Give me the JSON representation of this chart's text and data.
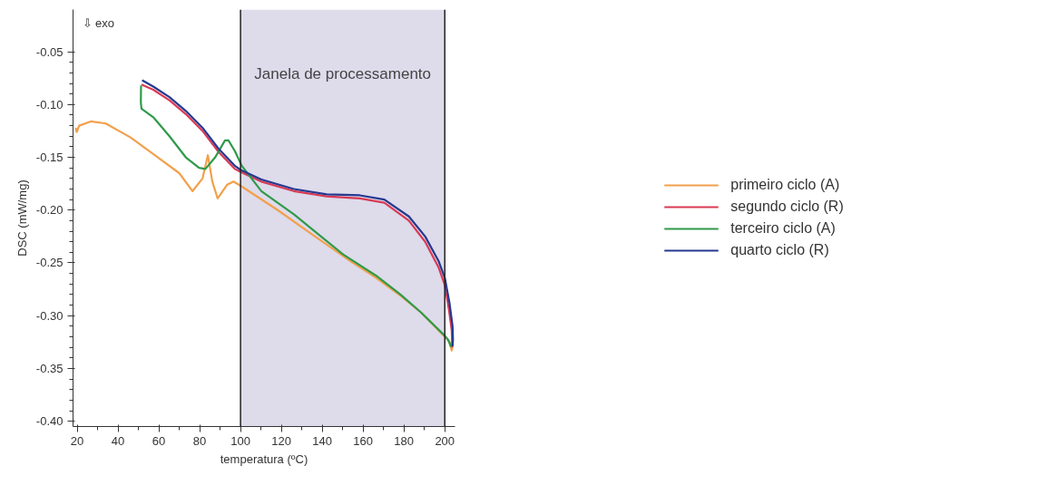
{
  "chart_data": {
    "type": "line",
    "xlabel": "temperatura (ºC)",
    "ylabel": "DSC (mW/mg)",
    "xlim": [
      18,
      205
    ],
    "ylim": [
      -0.405,
      -0.01
    ],
    "xticks": [
      20,
      40,
      60,
      80,
      100,
      120,
      140,
      160,
      180,
      200
    ],
    "yticks": [
      {
        "value": -0.05,
        "label": "-0.05"
      },
      {
        "value": -0.1,
        "label": "-0.10"
      },
      {
        "value": -0.15,
        "label": "-0.15"
      },
      {
        "value": -0.2,
        "label": "-0.20"
      },
      {
        "value": -0.25,
        "label": "-0.25"
      },
      {
        "value": -0.3,
        "label": "-0.30"
      },
      {
        "value": -0.35,
        "label": "-0.35"
      },
      {
        "value": -0.4,
        "label": "-0.40"
      }
    ],
    "grid": false,
    "legend": "right",
    "line_style": "solid",
    "annotations": [
      "⇩ exo"
    ],
    "bands": [
      {
        "axis": "x",
        "from": 100,
        "to": 200,
        "label": "Janela de processamento",
        "color": "#dedbeb"
      }
    ],
    "ref_lines": [
      {
        "axis": "x",
        "value": 100,
        "color": "#222222"
      },
      {
        "axis": "x",
        "value": 200,
        "color": "#222222"
      }
    ],
    "series": [
      {
        "name": "primeiro ciclo (A)",
        "color": "#f2a04c",
        "x": [
          19.3,
          19.8,
          21,
          26.7,
          34,
          46,
          58,
          70,
          76.5,
          81.4,
          84,
          86.2,
          88.8,
          93.4,
          96.5,
          100.1,
          118.2,
          134.3,
          154.3,
          166.3,
          178.3,
          188.4,
          200,
          202.4,
          203.4,
          204
        ],
        "values": [
          -0.122,
          -0.126,
          -0.12,
          -0.116,
          -0.118,
          -0.131,
          -0.148,
          -0.165,
          -0.182,
          -0.17,
          -0.148,
          -0.173,
          -0.189,
          -0.176,
          -0.173,
          -0.177,
          -0.2,
          -0.222,
          -0.249,
          -0.264,
          -0.281,
          -0.297,
          -0.32,
          -0.325,
          -0.333,
          -0.327
        ]
      },
      {
        "name": "segundo ciclo (R)",
        "color": "#d93a55",
        "x": [
          51.5,
          57.3,
          65.2,
          73.2,
          81.4,
          89.3,
          97.2,
          100.1,
          110.2,
          126.1,
          142.2,
          158.4,
          170.4,
          182.4,
          190.4,
          196.9,
          200,
          202,
          203.4,
          203.6
        ],
        "values": [
          -0.081,
          -0.086,
          -0.096,
          -0.109,
          -0.125,
          -0.145,
          -0.161,
          -0.164,
          -0.173,
          -0.182,
          -0.187,
          -0.189,
          -0.193,
          -0.21,
          -0.23,
          -0.254,
          -0.271,
          -0.294,
          -0.314,
          -0.33
        ]
      },
      {
        "name": "terceiro ciclo (A)",
        "color": "#2f9a4a",
        "x": [
          51.3,
          51.2,
          51.5,
          57.3,
          65.2,
          73.2,
          79.7,
          82.8,
          87.6,
          92.4,
          94.1,
          97.2,
          100.6,
          110.2,
          126.1,
          150.2,
          166.3,
          178.3,
          188.4,
          200,
          201.7,
          202.9,
          203.8
        ],
        "values": [
          -0.082,
          -0.098,
          -0.104,
          -0.112,
          -0.13,
          -0.15,
          -0.16,
          -0.161,
          -0.15,
          -0.134,
          -0.134,
          -0.144,
          -0.158,
          -0.182,
          -0.204,
          -0.242,
          -0.262,
          -0.28,
          -0.297,
          -0.319,
          -0.323,
          -0.329,
          -0.326
        ]
      },
      {
        "name": "quarto ciclo (R)",
        "color": "#25398f",
        "x": [
          51.8,
          57.3,
          65.2,
          73.2,
          81.4,
          89.3,
          97.2,
          100.1,
          110.2,
          126.1,
          142.2,
          158.4,
          170.4,
          182.4,
          190.4,
          196.9,
          200,
          202.3,
          203.8,
          204,
          203.8
        ],
        "values": [
          -0.077,
          -0.083,
          -0.093,
          -0.106,
          -0.122,
          -0.142,
          -0.158,
          -0.162,
          -0.171,
          -0.18,
          -0.185,
          -0.186,
          -0.19,
          -0.206,
          -0.225,
          -0.248,
          -0.264,
          -0.288,
          -0.31,
          -0.323,
          -0.329
        ]
      }
    ]
  }
}
